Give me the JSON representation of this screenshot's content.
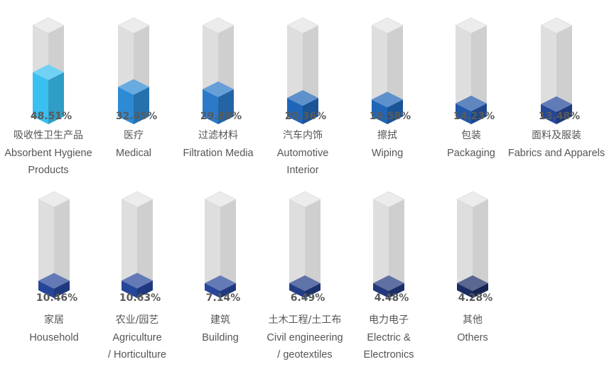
{
  "chart_data": {
    "type": "bar",
    "ylim": [
      0,
      100
    ],
    "categories": [
      {
        "pct": "48.51%",
        "zh": "吸收性卫生产品",
        "en": [
          "Absorbent Hygiene",
          "Products"
        ],
        "value": 48.51,
        "color": "#39bff0"
      },
      {
        "pct": "32.45%",
        "zh": "医疗",
        "en": [
          "Medical"
        ],
        "value": 32.45,
        "color": "#2d8ad4"
      },
      {
        "pct": "29.89%",
        "zh": "过滤材料",
        "en": [
          "Filtration Media"
        ],
        "value": 29.89,
        "color": "#2b7ac9"
      },
      {
        "pct": "20.36%",
        "zh": "汽车内饰",
        "en": [
          "Automotive",
          "Interior"
        ],
        "value": 20.36,
        "color": "#1f66b8"
      },
      {
        "pct": "18.58%",
        "zh": "擦拭",
        "en": [
          "Wiping"
        ],
        "value": 18.58,
        "color": "#1f66b8"
      },
      {
        "pct": "14.23%",
        "zh": "包装",
        "en": [
          "Packaging"
        ],
        "value": 14.23,
        "color": "#2257a8"
      },
      {
        "pct": "13.48%",
        "zh": "面料及服装",
        "en": [
          "Fabrics and Apparels"
        ],
        "value": 13.48,
        "color": "#23479a"
      },
      {
        "pct": "10.46%",
        "zh": "家居",
        "en": [
          "Household"
        ],
        "value": 10.46,
        "color": "#26469a"
      },
      {
        "pct": "10.63%",
        "zh": "农业/园艺",
        "en": [
          "Agriculture",
          "/ Horticulture"
        ],
        "value": 10.63,
        "color": "#26469a"
      },
      {
        "pct": "7.14%",
        "zh": "建筑",
        "en": [
          "Building"
        ],
        "value": 7.14,
        "color": "#26469a"
      },
      {
        "pct": "6.49%",
        "zh": "土木工程/土工布",
        "en": [
          "Civil engineering",
          "/ geotextiles"
        ],
        "value": 6.49,
        "color": "#223d86"
      },
      {
        "pct": "4.48%",
        "zh": "电力电子",
        "en": [
          "Electric &",
          "Electronics"
        ],
        "value": 4.48,
        "color": "#22387c"
      },
      {
        "pct": "4.28%",
        "zh": "其他",
        "en": [
          "Others"
        ],
        "value": 4.28,
        "color": "#1a2c63"
      }
    ]
  }
}
